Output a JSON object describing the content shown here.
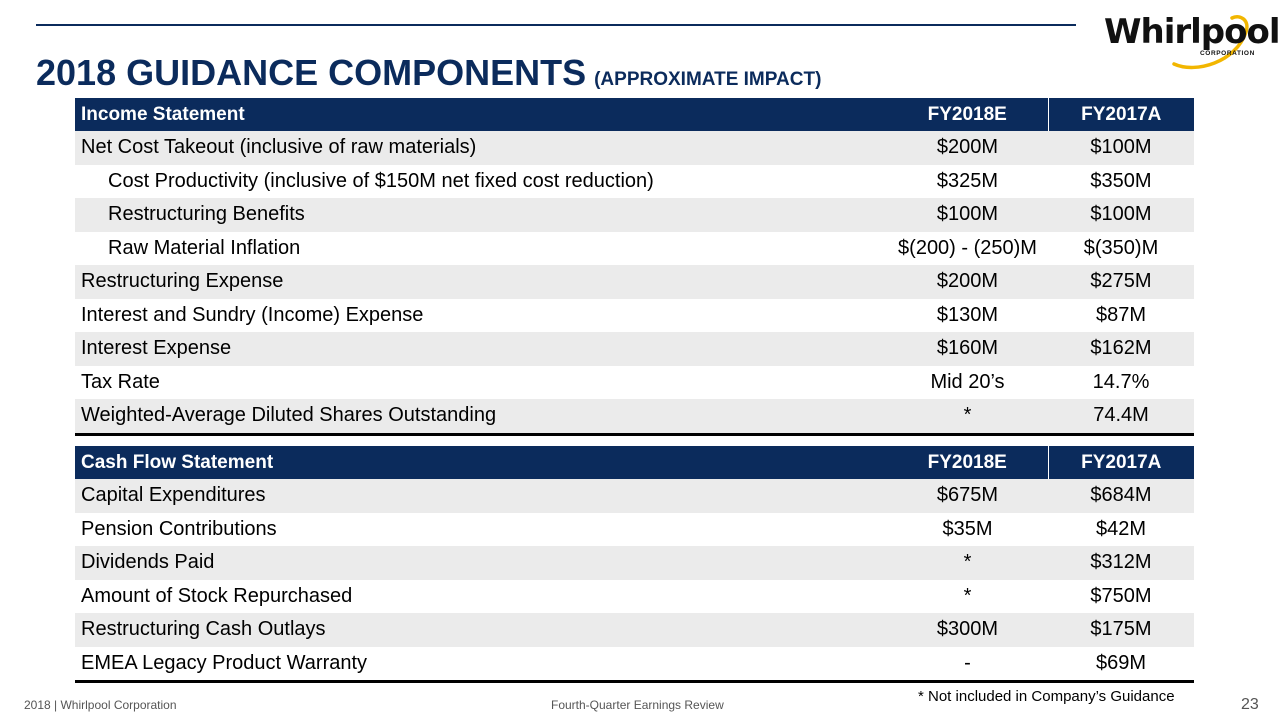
{
  "title": {
    "main": "2018 GUIDANCE COMPONENTS",
    "sub": "(APPROXIMATE IMPACT)"
  },
  "logo": {
    "wordmark": "Whirlpool",
    "tagline": "CORPORATION"
  },
  "colors": {
    "brand_navy": "#0b2b5c",
    "row_shade": "#ebebeb"
  },
  "income_statement": {
    "headers": [
      "Income Statement",
      "FY2018E",
      "FY2017A"
    ],
    "rows": [
      [
        "Net Cost Takeout (inclusive of raw materials)",
        "$200M",
        "$100M"
      ],
      [
        "Cost Productivity (inclusive of $150M net fixed cost reduction)",
        "$325M",
        "$350M"
      ],
      [
        "Restructuring Benefits",
        "$100M",
        "$100M"
      ],
      [
        "Raw Material Inflation",
        "$(200) - (250)M",
        "$(350)M"
      ],
      [
        "Restructuring Expense",
        "$200M",
        "$275M"
      ],
      [
        "Interest and Sundry (Income) Expense",
        "$130M",
        "$87M"
      ],
      [
        "Interest Expense",
        "$160M",
        "$162M"
      ],
      [
        "Tax Rate",
        "Mid 20’s",
        "14.7%"
      ],
      [
        "Weighted-Average Diluted Shares Outstanding",
        "*",
        "74.4M"
      ]
    ]
  },
  "cash_flow_statement": {
    "headers": [
      "Cash Flow Statement",
      "FY2018E",
      "FY2017A"
    ],
    "rows": [
      [
        "Capital Expenditures",
        "$675M",
        "$684M"
      ],
      [
        "Pension Contributions",
        "$35M",
        "$42M"
      ],
      [
        "Dividends Paid",
        "*",
        "$312M"
      ],
      [
        "Amount of Stock Repurchased",
        "*",
        "$750M"
      ],
      [
        "Restructuring Cash Outlays",
        "$300M",
        "$175M"
      ],
      [
        "EMEA Legacy Product Warranty",
        "-",
        "$69M"
      ]
    ]
  },
  "footnote": "* Not included in Company’s Guidance",
  "footer": {
    "left": "2018 | Whirlpool Corporation",
    "center": "Fourth-Quarter Earnings Review",
    "page_number": "23"
  }
}
